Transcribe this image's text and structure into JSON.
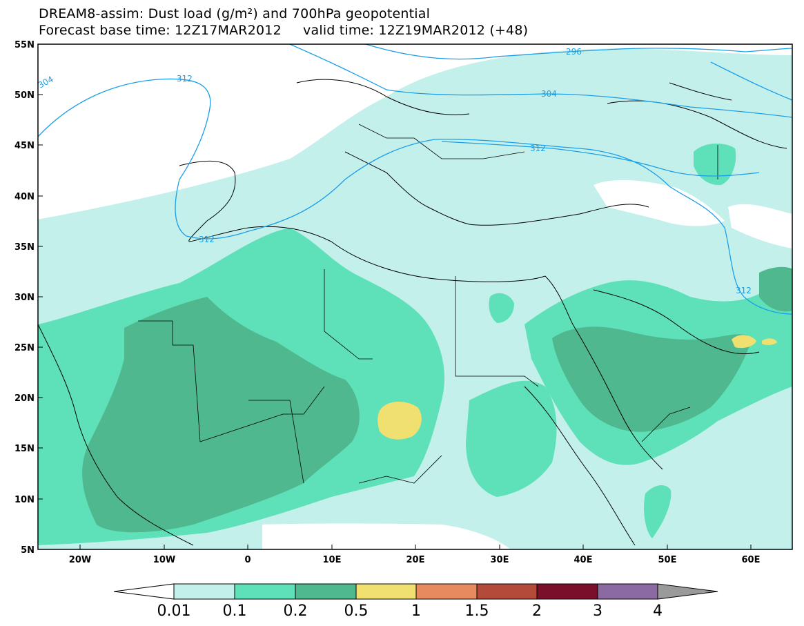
{
  "title": {
    "line1": "DREAM8-assim: Dust load (g/m²) and 700hPa geopotential",
    "line2": "Forecast base time: 12Z17MAR2012     valid time: 12Z19MAR2012 (+48)"
  },
  "lat_labels": [
    "55N",
    "50N",
    "45N",
    "40N",
    "35N",
    "30N",
    "25N",
    "20N",
    "15N",
    "10N",
    "5N"
  ],
  "lon_labels": [
    "20W",
    "10W",
    "0",
    "10E",
    "20E",
    "30E",
    "40E",
    "50E",
    "60E"
  ],
  "contour_labels": [
    "304",
    "312",
    "296",
    "304",
    "312",
    "312",
    "312"
  ],
  "colorbar": {
    "labels": [
      "0.01",
      "0.1",
      "0.2",
      "0.5",
      "1",
      "1.5",
      "2",
      "3",
      "4"
    ],
    "colors": [
      "#c4f0ec",
      "#5ee0b8",
      "#4fb88e",
      "#f0e070",
      "#e88a60",
      "#b34a3a",
      "#7a0f2a",
      "#8a6aa0",
      "#9a9a9a"
    ]
  },
  "map_colors": {
    "very_light": "#c4f0ec",
    "light": "#5ee0b8",
    "medium": "#4fb88e",
    "yellow": "#f0e070",
    "isoline": "#1a9ee8",
    "border": "#000000"
  }
}
